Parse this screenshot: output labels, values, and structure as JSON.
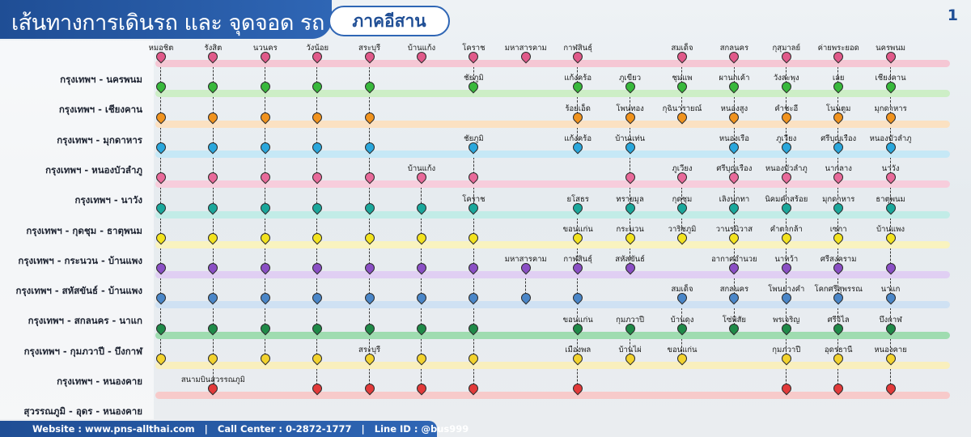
{
  "header": {
    "title": "เส้นทางการเดินรถ และ จุดจอด รถ บขส.",
    "region": "ภาคอีสาน",
    "page_number": "1"
  },
  "footer": {
    "website_label": "Website : www.pns-allthai.com",
    "call_center_label": "Call Center : 0-2872-1777",
    "line_label": "Line ID : @bus999",
    "separator": "|"
  },
  "routes": [
    {
      "name": "กรุงเทพฯ - นครพนม",
      "color": "#e05a8a",
      "line_color": "#f5c7d4",
      "stops": [
        {
          "col": 0,
          "label": "หมอชิต"
        },
        {
          "col": 1,
          "label": "รังสิต"
        },
        {
          "col": 2,
          "label": "นวนคร"
        },
        {
          "col": 3,
          "label": "วังน้อย"
        },
        {
          "col": 4,
          "label": "สระบุรี"
        },
        {
          "col": 5,
          "label": "บ้านแก้ง"
        },
        {
          "col": 6,
          "label": "โคราช"
        },
        {
          "col": 7,
          "label": "มหาสารคาม"
        },
        {
          "col": 8,
          "label": "กาฬสินธุ์"
        },
        {
          "col": 10,
          "label": "สมเด็จ"
        },
        {
          "col": 11,
          "label": "สกลนคร"
        },
        {
          "col": 12,
          "label": "กุสุมาลย์"
        },
        {
          "col": 13,
          "label": "ค่ายพระยอด"
        },
        {
          "col": 14,
          "label": "นครพนม"
        }
      ]
    },
    {
      "name": "กรุงเทพฯ - เชียงคาน",
      "color": "#38b83c",
      "line_color": "#cdeec6",
      "stops": [
        {
          "col": 0,
          "label": ""
        },
        {
          "col": 1,
          "label": ""
        },
        {
          "col": 2,
          "label": ""
        },
        {
          "col": 3,
          "label": ""
        },
        {
          "col": 4,
          "label": ""
        },
        {
          "col": 6,
          "label": "ชัยภูมิ"
        },
        {
          "col": 8,
          "label": "แก้งคร้อ"
        },
        {
          "col": 9,
          "label": "ภูเขียว"
        },
        {
          "col": 10,
          "label": "ชุมแพ"
        },
        {
          "col": 11,
          "label": "ผานกเค้า"
        },
        {
          "col": 12,
          "label": "วังสะพุง"
        },
        {
          "col": 13,
          "label": "เลย"
        },
        {
          "col": 14,
          "label": "เชียงคาน"
        }
      ]
    },
    {
      "name": "กรุงเทพฯ - มุกดาหาร",
      "color": "#f0931e",
      "line_color": "#fbe1c2",
      "stops": [
        {
          "col": 0,
          "label": ""
        },
        {
          "col": 1,
          "label": ""
        },
        {
          "col": 2,
          "label": ""
        },
        {
          "col": 3,
          "label": ""
        },
        {
          "col": 4,
          "label": ""
        },
        {
          "col": 8,
          "label": "ร้อยเอ็ด"
        },
        {
          "col": 9,
          "label": "โพนทอง"
        },
        {
          "col": 10,
          "label": "กุฉินารายณ์"
        },
        {
          "col": 11,
          "label": "หนองสูง"
        },
        {
          "col": 12,
          "label": "คำชะอี"
        },
        {
          "col": 13,
          "label": "โนนตูม"
        },
        {
          "col": 14,
          "label": "มุกดาหาร"
        }
      ]
    },
    {
      "name": "กรุงเทพฯ - หนองบัวลำภู",
      "color": "#2aa7dc",
      "line_color": "#c6e8f6",
      "stops": [
        {
          "col": 0,
          "label": ""
        },
        {
          "col": 1,
          "label": ""
        },
        {
          "col": 2,
          "label": ""
        },
        {
          "col": 3,
          "label": ""
        },
        {
          "col": 4,
          "label": ""
        },
        {
          "col": 6,
          "label": "ชัยภูมิ"
        },
        {
          "col": 8,
          "label": "แก้งคร้อ"
        },
        {
          "col": 9,
          "label": "บ้านแท่น"
        },
        {
          "col": 11,
          "label": "หนองเรือ"
        },
        {
          "col": 12,
          "label": "ภูเวียง"
        },
        {
          "col": 13,
          "label": "ศรีบุญเรือง"
        },
        {
          "col": 14,
          "label": "หนองบัวลำภู"
        }
      ]
    },
    {
      "name": "กรุงเทพฯ - นาวัง",
      "color": "#e86a9a",
      "line_color": "#f7cddc",
      "stops": [
        {
          "col": 0,
          "label": ""
        },
        {
          "col": 1,
          "label": ""
        },
        {
          "col": 2,
          "label": ""
        },
        {
          "col": 3,
          "label": ""
        },
        {
          "col": 4,
          "label": ""
        },
        {
          "col": 5,
          "label": "บ้านแก้ง"
        },
        {
          "col": 6,
          "label": ""
        },
        {
          "col": 9,
          "label": ""
        },
        {
          "col": 10,
          "label": "ภูเวียง"
        },
        {
          "col": 11,
          "label": "ศรีบุญเรือง"
        },
        {
          "col": 12,
          "label": "หนองบัวลำภู"
        },
        {
          "col": 13,
          "label": "นากลาง"
        },
        {
          "col": 14,
          "label": "นาวัง"
        }
      ]
    },
    {
      "name": "กรุงเทพฯ - กุดชุม - ธาตุพนม",
      "color": "#1aa79b",
      "line_color": "#c2ece7",
      "stops": [
        {
          "col": 0,
          "label": ""
        },
        {
          "col": 1,
          "label": ""
        },
        {
          "col": 2,
          "label": ""
        },
        {
          "col": 3,
          "label": ""
        },
        {
          "col": 4,
          "label": ""
        },
        {
          "col": 5,
          "label": ""
        },
        {
          "col": 6,
          "label": "โคราช"
        },
        {
          "col": 8,
          "label": "ยโสธร"
        },
        {
          "col": 9,
          "label": "ทรายมูล"
        },
        {
          "col": 10,
          "label": "กุดชุม"
        },
        {
          "col": 11,
          "label": "เลิงนกทา"
        },
        {
          "col": 12,
          "label": "นิคมคำสร้อย"
        },
        {
          "col": 13,
          "label": "มุกดาหาร"
        },
        {
          "col": 14,
          "label": "ธาตุพนม"
        }
      ]
    },
    {
      "name": "กรุงเทพฯ - กระนวน - บ้านแพง",
      "color": "#f2e21e",
      "line_color": "#f9f3bf",
      "stops": [
        {
          "col": 0,
          "label": ""
        },
        {
          "col": 1,
          "label": ""
        },
        {
          "col": 2,
          "label": ""
        },
        {
          "col": 3,
          "label": ""
        },
        {
          "col": 4,
          "label": ""
        },
        {
          "col": 5,
          "label": ""
        },
        {
          "col": 6,
          "label": ""
        },
        {
          "col": 8,
          "label": "ขอนแก่น"
        },
        {
          "col": 9,
          "label": "กระนวน"
        },
        {
          "col": 10,
          "label": "วาริชภูมิ"
        },
        {
          "col": 11,
          "label": "วานรนิวาส"
        },
        {
          "col": 12,
          "label": "คำตากล้า"
        },
        {
          "col": 13,
          "label": "เซกา"
        },
        {
          "col": 14,
          "label": "บ้านแพง"
        }
      ]
    },
    {
      "name": "กรุงเทพฯ - สหัสขันธ์ - บ้านแพง",
      "color": "#8a4fc4",
      "line_color": "#e0cff3",
      "stops": [
        {
          "col": 0,
          "label": ""
        },
        {
          "col": 1,
          "label": ""
        },
        {
          "col": 2,
          "label": ""
        },
        {
          "col": 3,
          "label": ""
        },
        {
          "col": 4,
          "label": ""
        },
        {
          "col": 5,
          "label": ""
        },
        {
          "col": 6,
          "label": ""
        },
        {
          "col": 7,
          "label": "มหาสารคาม"
        },
        {
          "col": 8,
          "label": "กาฬสินธุ์"
        },
        {
          "col": 9,
          "label": "สหัสขันธ์"
        },
        {
          "col": 11,
          "label": "อากาศอำนวย"
        },
        {
          "col": 12,
          "label": "นาหว้า"
        },
        {
          "col": 13,
          "label": "ศรีสงคราม"
        },
        {
          "col": 14,
          "label": ""
        }
      ]
    },
    {
      "name": "กรุงเทพฯ - สกลนคร - นาแก",
      "color": "#4a86c8",
      "line_color": "#cfe1f3",
      "stops": [
        {
          "col": 0,
          "label": ""
        },
        {
          "col": 1,
          "label": ""
        },
        {
          "col": 2,
          "label": ""
        },
        {
          "col": 3,
          "label": ""
        },
        {
          "col": 4,
          "label": ""
        },
        {
          "col": 5,
          "label": ""
        },
        {
          "col": 6,
          "label": ""
        },
        {
          "col": 7,
          "label": ""
        },
        {
          "col": 8,
          "label": ""
        },
        {
          "col": 10,
          "label": "สมเด็จ"
        },
        {
          "col": 11,
          "label": "สกลนคร"
        },
        {
          "col": 12,
          "label": "โพนยางคำ"
        },
        {
          "col": 13,
          "label": "โคกศรีสุพรรณ"
        },
        {
          "col": 14,
          "label": "นาแก"
        }
      ]
    },
    {
      "name": "กรุงเทพฯ - กุมภวาปี - บึงกาฬ",
      "color": "#1f8a48",
      "line_color": "#9fdcb0",
      "stops": [
        {
          "col": 0,
          "label": ""
        },
        {
          "col": 1,
          "label": ""
        },
        {
          "col": 2,
          "label": ""
        },
        {
          "col": 3,
          "label": ""
        },
        {
          "col": 4,
          "label": ""
        },
        {
          "col": 5,
          "label": ""
        },
        {
          "col": 6,
          "label": ""
        },
        {
          "col": 8,
          "label": "ขอนแก่น"
        },
        {
          "col": 9,
          "label": "กุมภวาปี"
        },
        {
          "col": 10,
          "label": "บ้านดุง"
        },
        {
          "col": 11,
          "label": "โซ่พิสัย"
        },
        {
          "col": 12,
          "label": "พรเจริญ"
        },
        {
          "col": 13,
          "label": "ศรีวิไล"
        },
        {
          "col": 14,
          "label": "บึงกาฬ"
        }
      ]
    },
    {
      "name": "กรุงเทพฯ - หนองคาย",
      "color": "#f2d22e",
      "line_color": "#f9efbd",
      "stops": [
        {
          "col": 0,
          "label": ""
        },
        {
          "col": 1,
          "label": ""
        },
        {
          "col": 2,
          "label": ""
        },
        {
          "col": 3,
          "label": ""
        },
        {
          "col": 4,
          "label": "สระบุรี"
        },
        {
          "col": 5,
          "label": ""
        },
        {
          "col": 6,
          "label": ""
        },
        {
          "col": 8,
          "label": "เมืองพล"
        },
        {
          "col": 9,
          "label": "บ้านไผ่"
        },
        {
          "col": 10,
          "label": "ขอนแก่น"
        },
        {
          "col": 12,
          "label": "กุมภวาปี"
        },
        {
          "col": 13,
          "label": "อุดรธานี"
        },
        {
          "col": 14,
          "label": "หนองคาย"
        }
      ]
    },
    {
      "name": "สุวรรณภูมิ - อุดร - หนองคาย",
      "color": "#e23a3a",
      "line_color": "#f7caca",
      "stops": [
        {
          "col": 1,
          "label": "สนามบินสุวรรณภูมิ"
        },
        {
          "col": 3,
          "label": ""
        },
        {
          "col": 4,
          "label": ""
        },
        {
          "col": 5,
          "label": ""
        },
        {
          "col": 6,
          "label": ""
        },
        {
          "col": 8,
          "label": ""
        },
        {
          "col": 12,
          "label": ""
        },
        {
          "col": 13,
          "label": ""
        },
        {
          "col": 14,
          "label": ""
        }
      ]
    }
  ]
}
